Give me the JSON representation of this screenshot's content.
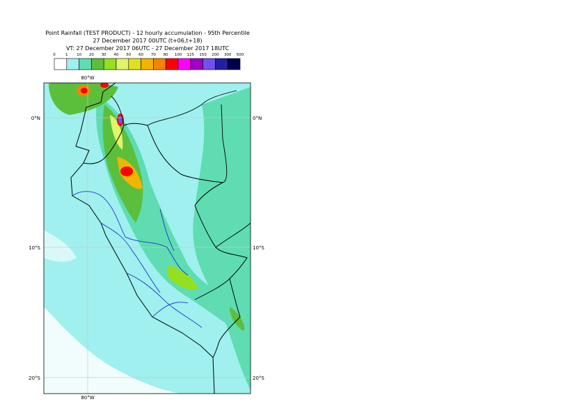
{
  "header": {
    "title": "Point Rainfall (TEST PRODUCT) - 12 hourly accumulation - 95th Percentile",
    "run": "27 December 2017 00UTC (t+06,t+18)",
    "validity": "VT: 27 December 2017 06UTC - 27 December 2017 18UTC"
  },
  "legend": {
    "ticks": [
      0,
      1,
      10,
      20,
      30,
      40,
      50,
      60,
      70,
      80,
      100,
      125,
      150,
      200,
      300,
      500
    ],
    "colors": [
      "#ffffff",
      "#9ff0ee",
      "#5fdcb2",
      "#5cbf3c",
      "#95e01e",
      "#e2f46a",
      "#e0e020",
      "#f2b400",
      "#f58400",
      "#ff0000",
      "#ff00ff",
      "#a000c8",
      "#7050f0",
      "#2020a0",
      "#00004e"
    ]
  },
  "map": {
    "lon_labels": [
      "80°W"
    ],
    "lat_labels": [
      "0°N",
      "10°S",
      "20°S"
    ]
  }
}
